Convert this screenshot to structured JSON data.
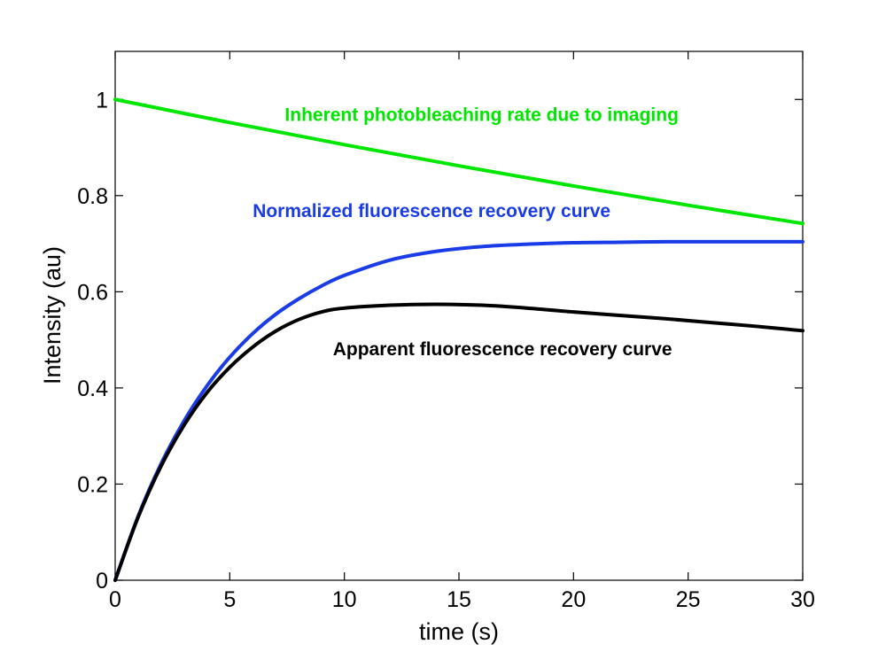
{
  "chart_data": {
    "type": "line",
    "title": "",
    "xlabel": "time (s)",
    "ylabel": "Intensity (au)",
    "xlim": [
      0,
      30
    ],
    "ylim": [
      0,
      1.1
    ],
    "xticks": [
      "0",
      "5",
      "10",
      "15",
      "20",
      "25",
      "30"
    ],
    "yticks": [
      "0",
      "0.2",
      "0.4",
      "0.6",
      "0.8",
      "1"
    ],
    "grid": false,
    "legend": "none",
    "series": [
      {
        "color": "#00e600",
        "x": [
          0,
          5,
          10,
          15,
          20,
          25,
          30
        ],
        "y": [
          1.0,
          0.952,
          0.906,
          0.862,
          0.82,
          0.78,
          0.742
        ]
      },
      {
        "color": "#1a3ce6",
        "x": [
          0,
          1,
          2,
          3,
          4,
          5,
          6,
          7,
          8,
          9,
          10,
          12,
          14,
          16,
          18,
          20,
          22,
          24,
          26,
          28,
          30
        ],
        "y": [
          0,
          0.133,
          0.242,
          0.331,
          0.404,
          0.464,
          0.513,
          0.553,
          0.585,
          0.612,
          0.634,
          0.666,
          0.684,
          0.694,
          0.699,
          0.702,
          0.703,
          0.704,
          0.704,
          0.704,
          0.704
        ]
      },
      {
        "color": "#000000",
        "x": [
          0,
          1,
          2,
          3,
          4,
          5,
          6,
          7,
          8,
          9,
          10,
          12,
          14,
          16,
          18,
          20,
          22,
          24,
          26,
          28,
          30
        ],
        "y": [
          0,
          0.131,
          0.237,
          0.322,
          0.39,
          0.443,
          0.485,
          0.518,
          0.542,
          0.558,
          0.566,
          0.572,
          0.574,
          0.572,
          0.566,
          0.558,
          0.551,
          0.544,
          0.536,
          0.528,
          0.519
        ]
      }
    ],
    "annotations": [
      {
        "text": "Inherent photobleaching rate due to imaging",
        "color": "#00e600",
        "x": 7.4,
        "y": 0.955
      },
      {
        "text": "Normalized fluorescence recovery curve",
        "color": "#1a3ce6",
        "x": 6.0,
        "y": 0.755
      },
      {
        "text": "Apparent fluorescence recovery curve",
        "color": "#000000",
        "x": 9.5,
        "y": 0.468
      }
    ]
  }
}
